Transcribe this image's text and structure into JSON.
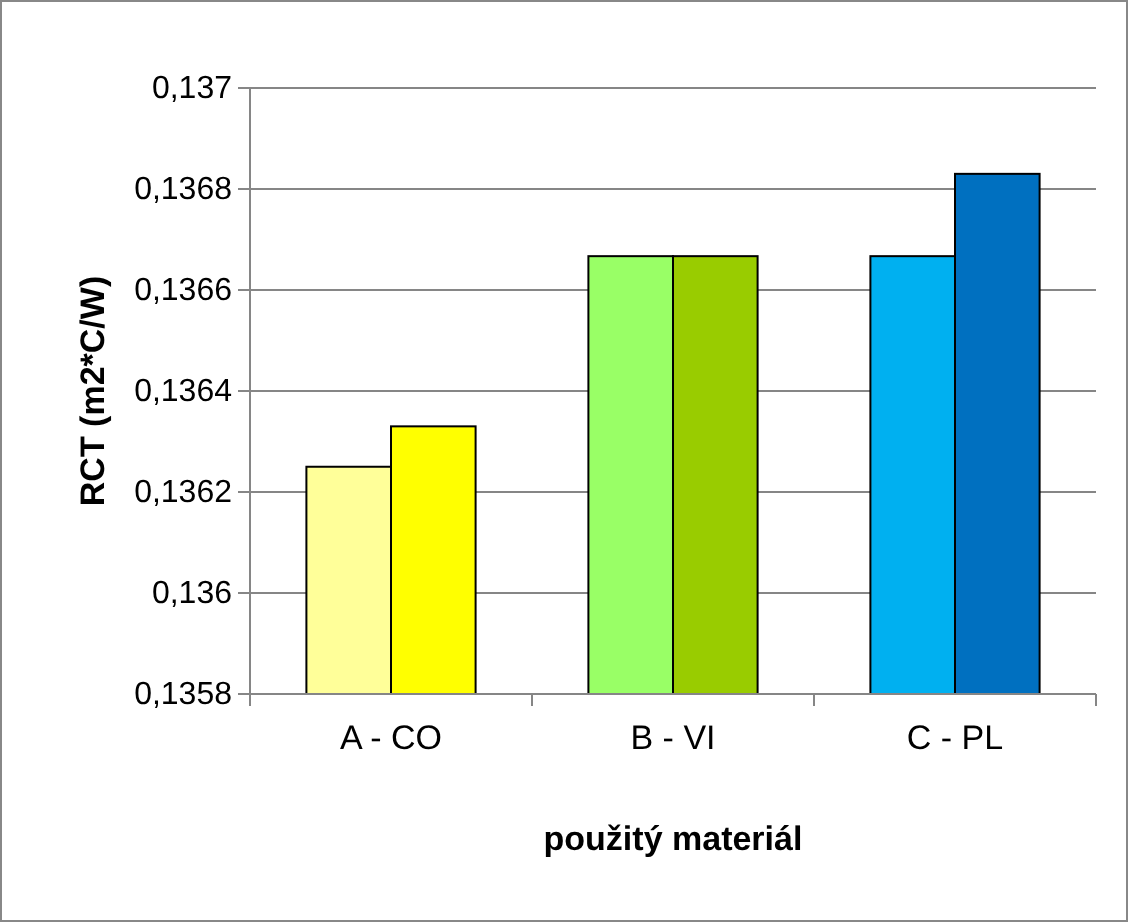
{
  "chart_data": {
    "type": "bar",
    "ylabel": "RCT (m2*C/W)",
    "xlabel": "použitý materiál",
    "categories": [
      "A - CO",
      "B - VI",
      "C - PL"
    ],
    "series": [
      {
        "colors": [
          "#ffff99",
          "#99ff66",
          "#00b0f0"
        ],
        "values": [
          0.13625,
          0.136667,
          0.136667
        ]
      },
      {
        "colors": [
          "#ffff00",
          "#99cc00",
          "#0070c0"
        ],
        "values": [
          0.13633,
          0.136667,
          0.13683
        ]
      }
    ],
    "ylim": [
      0.1358,
      0.137
    ],
    "yticks": [
      {
        "value": 0.1358,
        "label": "0,1358"
      },
      {
        "value": 0.136,
        "label": "0,136"
      },
      {
        "value": 0.1362,
        "label": "0,1362"
      },
      {
        "value": 0.1364,
        "label": "0,1364"
      },
      {
        "value": 0.1366,
        "label": "0,1366"
      },
      {
        "value": 0.1368,
        "label": "0,1368"
      },
      {
        "value": 0.137,
        "label": "0,137"
      }
    ],
    "grid": "y"
  }
}
